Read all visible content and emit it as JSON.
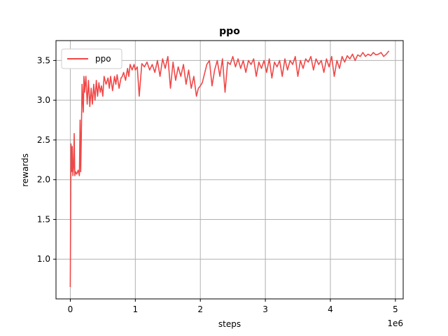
{
  "chart_data": {
    "type": "line",
    "title": "ppo",
    "xlabel": "steps",
    "ylabel": "rewards",
    "x_offset_label": "1e6",
    "xlim": [
      -0.22,
      5.12
    ],
    "ylim": [
      0.5,
      3.75
    ],
    "x_ticks": [
      0,
      1,
      2,
      3,
      4,
      5
    ],
    "x_tick_labels": [
      "0",
      "1",
      "2",
      "3",
      "4",
      "5"
    ],
    "y_ticks": [
      1.0,
      1.5,
      2.0,
      2.5,
      3.0,
      3.5
    ],
    "y_tick_labels": [
      "1.0",
      "1.5",
      "2.0",
      "2.5",
      "3.0",
      "3.5"
    ],
    "grid": true,
    "legend_position": "upper-left",
    "series": [
      {
        "name": "ppo",
        "color": "#f04848",
        "x": [
          0.0,
          0.01,
          0.02,
          0.03,
          0.04,
          0.05,
          0.06,
          0.07,
          0.08,
          0.1,
          0.12,
          0.14,
          0.15,
          0.16,
          0.17,
          0.18,
          0.2,
          0.21,
          0.22,
          0.24,
          0.26,
          0.28,
          0.3,
          0.32,
          0.34,
          0.36,
          0.38,
          0.4,
          0.42,
          0.44,
          0.46,
          0.48,
          0.5,
          0.52,
          0.55,
          0.58,
          0.6,
          0.62,
          0.65,
          0.68,
          0.7,
          0.72,
          0.75,
          0.78,
          0.8,
          0.82,
          0.85,
          0.88,
          0.9,
          0.92,
          0.95,
          0.98,
          1.0,
          1.03,
          1.06,
          1.1,
          1.14,
          1.18,
          1.22,
          1.26,
          1.3,
          1.34,
          1.38,
          1.42,
          1.46,
          1.5,
          1.54,
          1.58,
          1.62,
          1.66,
          1.7,
          1.74,
          1.78,
          1.82,
          1.86,
          1.9,
          1.94,
          1.97,
          2.0,
          2.03,
          2.06,
          2.1,
          2.14,
          2.18,
          2.22,
          2.26,
          2.3,
          2.34,
          2.38,
          2.42,
          2.46,
          2.5,
          2.54,
          2.58,
          2.62,
          2.66,
          2.7,
          2.74,
          2.78,
          2.82,
          2.86,
          2.9,
          2.94,
          2.98,
          3.02,
          3.06,
          3.1,
          3.14,
          3.18,
          3.22,
          3.26,
          3.3,
          3.34,
          3.38,
          3.42,
          3.46,
          3.5,
          3.54,
          3.58,
          3.62,
          3.66,
          3.7,
          3.74,
          3.78,
          3.82,
          3.86,
          3.9,
          3.94,
          3.98,
          4.02,
          4.06,
          4.1,
          4.14,
          4.18,
          4.22,
          4.26,
          4.3,
          4.34,
          4.38,
          4.42,
          4.46,
          4.5,
          4.54,
          4.58,
          4.62,
          4.66,
          4.7,
          4.74,
          4.78,
          4.82,
          4.86,
          4.9
        ],
        "y": [
          0.65,
          2.45,
          2.1,
          2.42,
          2.05,
          2.15,
          2.58,
          2.05,
          2.1,
          2.07,
          2.12,
          2.05,
          2.75,
          2.1,
          2.55,
          3.2,
          2.85,
          3.3,
          3.1,
          3.3,
          2.95,
          3.25,
          2.92,
          3.15,
          2.95,
          3.2,
          3.0,
          3.25,
          3.05,
          3.22,
          3.1,
          3.18,
          3.05,
          3.3,
          3.2,
          3.28,
          3.15,
          3.3,
          3.12,
          3.3,
          3.2,
          3.32,
          3.15,
          3.28,
          3.3,
          3.35,
          3.25,
          3.4,
          3.3,
          3.45,
          3.38,
          3.45,
          3.38,
          3.42,
          3.05,
          3.46,
          3.42,
          3.48,
          3.38,
          3.45,
          3.35,
          3.5,
          3.3,
          3.52,
          3.4,
          3.55,
          3.15,
          3.48,
          3.25,
          3.42,
          3.3,
          3.45,
          3.2,
          3.38,
          3.15,
          3.3,
          3.05,
          3.15,
          3.18,
          3.22,
          3.32,
          3.45,
          3.5,
          3.18,
          3.38,
          3.5,
          3.3,
          3.52,
          3.1,
          3.48,
          3.45,
          3.55,
          3.42,
          3.52,
          3.4,
          3.5,
          3.35,
          3.5,
          3.45,
          3.52,
          3.3,
          3.48,
          3.4,
          3.5,
          3.35,
          3.52,
          3.28,
          3.48,
          3.42,
          3.5,
          3.3,
          3.52,
          3.38,
          3.5,
          3.45,
          3.55,
          3.3,
          3.5,
          3.4,
          3.52,
          3.48,
          3.55,
          3.38,
          3.52,
          3.45,
          3.5,
          3.35,
          3.52,
          3.42,
          3.55,
          3.3,
          3.5,
          3.4,
          3.55,
          3.48,
          3.56,
          3.52,
          3.58,
          3.5,
          3.57,
          3.55,
          3.6,
          3.55,
          3.58,
          3.56,
          3.6,
          3.57,
          3.58,
          3.6,
          3.55,
          3.58,
          3.62
        ]
      }
    ]
  }
}
